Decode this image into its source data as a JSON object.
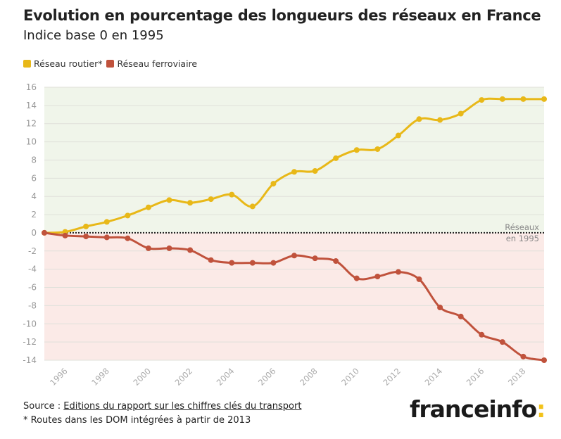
{
  "header": {
    "title": "Evolution en pourcentage des longueurs des réseaux en France",
    "subtitle": "Indice base 0 en 1995"
  },
  "footer": {
    "source_prefix": "Source : ",
    "source_link": "Editions du rapport sur les chiffres clés du transport",
    "note": "* Routes dans les DOM intégrées à partir de 2013",
    "logo_text": "franceinfo",
    "logo_mark": ":"
  },
  "colors": {
    "road": "#e8b818",
    "rail": "#c0523c",
    "positive_bg": "#f0f5ea",
    "negative_bg": "#fbeae7"
  },
  "chart_data": {
    "type": "line",
    "title": "Evolution en pourcentage des longueurs des réseaux en France",
    "subtitle": "Indice base 0 en 1995",
    "x": [
      1995,
      1996,
      1997,
      1998,
      1999,
      2000,
      2001,
      2002,
      2003,
      2004,
      2005,
      2006,
      2007,
      2008,
      2009,
      2010,
      2011,
      2012,
      2013,
      2014,
      2015,
      2016,
      2017,
      2018,
      2019
    ],
    "x_tick_labels": [
      "1996",
      "1998",
      "2000",
      "2002",
      "2004",
      "2006",
      "2008",
      "2010",
      "2012",
      "2014",
      "2016",
      "2018"
    ],
    "y_ticks": [
      16,
      14,
      12,
      10,
      8,
      6,
      4,
      2,
      0,
      -2,
      -4,
      -6,
      -8,
      -10,
      -12,
      -14
    ],
    "ylim": [
      -14,
      16
    ],
    "grid": true,
    "legend": "top-left",
    "reference_line": {
      "y": 0,
      "label_line1": "Réseaux",
      "label_line2": "en 1995"
    },
    "series": [
      {
        "name": "Réseau routier*",
        "values": [
          0,
          0.1,
          0.7,
          1.2,
          1.9,
          2.8,
          3.6,
          3.3,
          3.7,
          4.2,
          2.9,
          5.4,
          6.7,
          6.8,
          8.2,
          9.1,
          9.2,
          10.7,
          12.5,
          12.4,
          13.1,
          14.6,
          14.7,
          14.7,
          14.7
        ]
      },
      {
        "name": "Réseau ferroviaire",
        "values": [
          0,
          -0.3,
          -0.4,
          -0.5,
          -0.6,
          -1.7,
          -1.7,
          -1.9,
          -3.0,
          -3.3,
          -3.3,
          -3.3,
          -2.5,
          -2.8,
          -3.1,
          -5.0,
          -4.8,
          -4.3,
          -5.1,
          -8.2,
          -9.2,
          -11.2,
          -12.0,
          -13.6,
          -14.0
        ]
      }
    ]
  }
}
